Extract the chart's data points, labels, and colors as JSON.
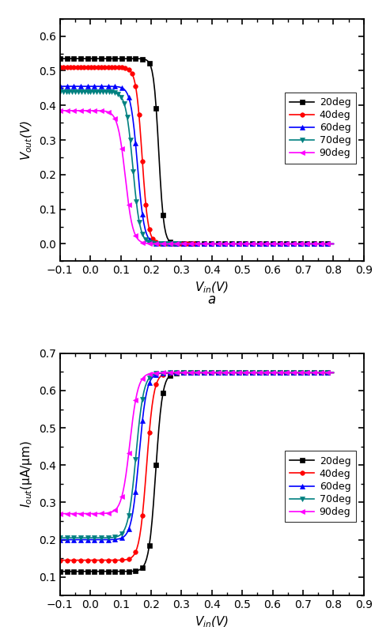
{
  "fig_width": 4.74,
  "fig_height": 7.93,
  "background_color": "#ffffff",
  "subplot_a": {
    "xlabel": "$V_{in}$(V)",
    "ylabel": "$V_{out}$(V)",
    "xlim": [
      -0.1,
      0.9
    ],
    "ylim": [
      -0.05,
      0.65
    ],
    "xticks": [
      -0.1,
      0.0,
      0.1,
      0.2,
      0.3,
      0.4,
      0.5,
      0.6,
      0.7,
      0.8,
      0.9
    ],
    "yticks": [
      0.0,
      0.1,
      0.2,
      0.3,
      0.4,
      0.5,
      0.6
    ],
    "legend_loc": "center right",
    "curves": [
      {
        "label": "20deg",
        "color": "#000000",
        "marker": "s",
        "x_start": -0.1,
        "x_knee": 0.19,
        "x_drop_center": 0.225,
        "x_end": 0.8,
        "y_high": 0.535,
        "y_low": 0.0,
        "steepness": 120
      },
      {
        "label": "40deg",
        "color": "#ff0000",
        "marker": "o",
        "x_start": -0.1,
        "x_knee": 0.115,
        "x_drop_center": 0.17,
        "x_end": 0.35,
        "y_high": 0.51,
        "y_low": 0.0,
        "steepness": 100
      },
      {
        "label": "60deg",
        "color": "#0000ff",
        "marker": "^",
        "x_start": -0.1,
        "x_knee": 0.04,
        "x_drop_center": 0.155,
        "x_end": 0.8,
        "y_high": 0.455,
        "y_low": 0.0,
        "steepness": 90
      },
      {
        "label": "70deg",
        "color": "#008080",
        "marker": "v",
        "x_start": -0.1,
        "x_knee": 0.03,
        "x_drop_center": 0.14,
        "x_end": 0.3,
        "y_high": 0.44,
        "y_low": 0.0,
        "steepness": 85
      },
      {
        "label": "90deg",
        "color": "#ff00ff",
        "marker": "<",
        "x_start": -0.1,
        "x_knee": 0.0,
        "x_drop_center": 0.115,
        "x_end": 0.8,
        "y_high": 0.385,
        "y_low": 0.0,
        "steepness": 80
      }
    ]
  },
  "subplot_b": {
    "xlabel": "$V_{in}$(V)",
    "ylabel": "$I_{out}$(μA/μm)",
    "xlim": [
      -0.1,
      0.9
    ],
    "ylim": [
      0.05,
      0.7
    ],
    "xticks": [
      -0.1,
      0.0,
      0.1,
      0.2,
      0.3,
      0.4,
      0.5,
      0.6,
      0.7,
      0.8,
      0.9
    ],
    "yticks": [
      0.1,
      0.2,
      0.3,
      0.4,
      0.5,
      0.6,
      0.7
    ],
    "legend_loc": "center right",
    "curves": [
      {
        "label": "20deg",
        "color": "#000000",
        "marker": "s",
        "x_start": -0.1,
        "x_knee": 0.14,
        "x_rise_center": 0.215,
        "x_end": 0.8,
        "y_low": 0.115,
        "y_high": 0.648,
        "steepness": 90
      },
      {
        "label": "40deg",
        "color": "#ff0000",
        "marker": "o",
        "x_start": -0.1,
        "x_knee": 0.1,
        "x_rise_center": 0.185,
        "x_end": 0.8,
        "y_low": 0.145,
        "y_high": 0.648,
        "steepness": 85
      },
      {
        "label": "60deg",
        "color": "#0000ff",
        "marker": "^",
        "x_start": -0.1,
        "x_knee": 0.03,
        "x_rise_center": 0.16,
        "x_end": 0.8,
        "y_low": 0.2,
        "y_high": 0.648,
        "steepness": 80
      },
      {
        "label": "70deg",
        "color": "#008080",
        "marker": "v",
        "x_start": -0.1,
        "x_knee": 0.02,
        "x_rise_center": 0.15,
        "x_end": 0.8,
        "y_low": 0.205,
        "y_high": 0.648,
        "steepness": 78
      },
      {
        "label": "90deg",
        "color": "#ff00ff",
        "marker": "<",
        "x_start": -0.1,
        "x_knee": 0.0,
        "x_rise_center": 0.13,
        "x_end": 0.8,
        "y_low": 0.27,
        "y_high": 0.648,
        "steepness": 75
      }
    ]
  }
}
